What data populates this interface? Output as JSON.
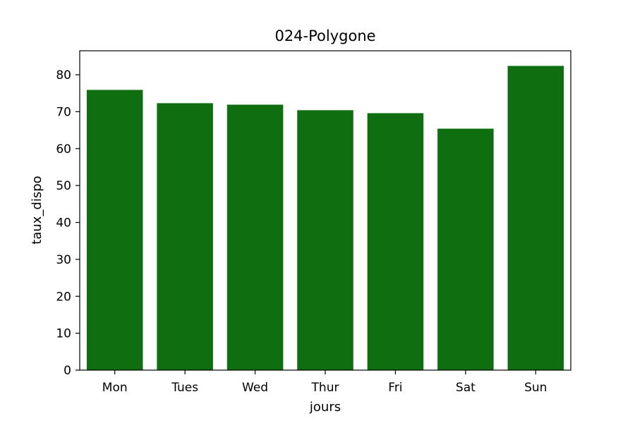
{
  "chart_data": {
    "type": "bar",
    "title": "024-Polygone",
    "xlabel": "jours",
    "ylabel": "taux_dispo",
    "categories": [
      "Mon",
      "Tues",
      "Wed",
      "Thur",
      "Fri",
      "Sat",
      "Sun"
    ],
    "values": [
      75.9,
      72.3,
      71.9,
      70.4,
      69.6,
      65.4,
      82.4
    ],
    "ylim": [
      0,
      86.5
    ],
    "yticks": [
      0,
      10,
      20,
      30,
      40,
      50,
      60,
      70,
      80
    ],
    "grid": false,
    "legend": "none",
    "bar_color": "#0f6f10"
  }
}
